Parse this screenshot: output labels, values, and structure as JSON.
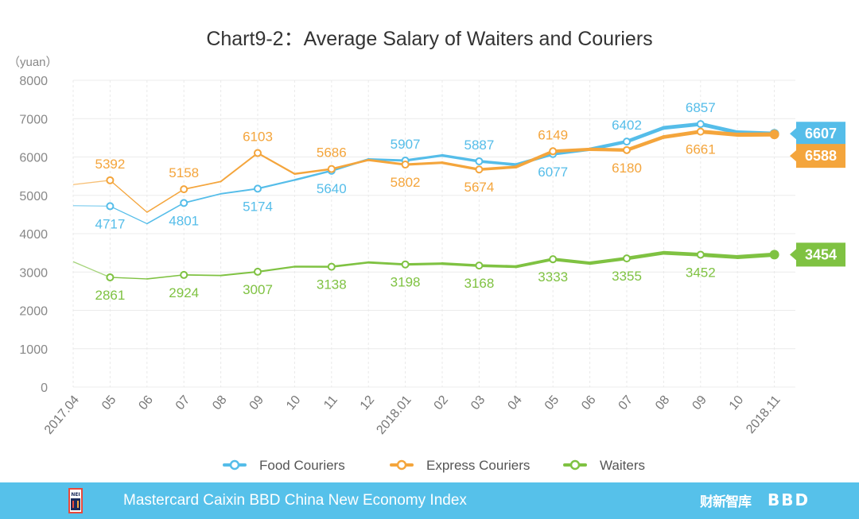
{
  "chart_data": {
    "type": "line",
    "title": "Chart9-2：Average Salary of Waiters and Couriers",
    "ylabel": "（yuan）",
    "xlabel": "",
    "ylim": [
      0,
      8000
    ],
    "yticks": [
      "0",
      "1000",
      "2000",
      "3000",
      "4000",
      "5000",
      "6000",
      "7000",
      "8000"
    ],
    "categories": [
      "2017.04",
      "05",
      "06",
      "07",
      "08",
      "09",
      "10",
      "11",
      "12",
      "2018.01",
      "02",
      "03",
      "04",
      "05",
      "06",
      "07",
      "08",
      "09",
      "10",
      "2018.11"
    ],
    "series": [
      {
        "name": "Food Couriers",
        "color": "#55bde9",
        "values": [
          4730,
          4717,
          4260,
          4801,
          5040,
          5174,
          5400,
          5640,
          5940,
          5907,
          6040,
          5887,
          5800,
          6077,
          6200,
          6402,
          6760,
          6857,
          6640,
          6607
        ],
        "labels": [
          null,
          "4717",
          null,
          "4801",
          null,
          "5174",
          null,
          "5640",
          null,
          "5907",
          null,
          "5887",
          null,
          "6077",
          null,
          "6402",
          null,
          "6857",
          null,
          null
        ],
        "label_pos": [
          null,
          "below",
          null,
          "below",
          null,
          "below",
          null,
          "below",
          null,
          "above",
          null,
          "above",
          null,
          "below",
          null,
          "above",
          null,
          "above",
          null,
          null
        ],
        "end_label": "6607"
      },
      {
        "name": "Express Couriers",
        "color": "#f4a53c",
        "values": [
          5280,
          5392,
          4560,
          5158,
          5360,
          6103,
          5560,
          5686,
          5920,
          5802,
          5850,
          5674,
          5740,
          6149,
          6200,
          6180,
          6520,
          6661,
          6580,
          6588
        ],
        "labels": [
          null,
          "5392",
          null,
          "5158",
          null,
          "6103",
          null,
          "5686",
          null,
          "5802",
          null,
          "5674",
          null,
          "6149",
          null,
          "6180",
          null,
          "6661",
          null,
          null
        ],
        "label_pos": [
          null,
          "above",
          null,
          "above",
          null,
          "above",
          null,
          "above",
          null,
          "below",
          null,
          "below",
          null,
          "above",
          null,
          "below",
          null,
          "below",
          null,
          null
        ],
        "end_label": "6588"
      },
      {
        "name": "Waiters",
        "color": "#7fc242",
        "values": [
          3270,
          2861,
          2820,
          2924,
          2910,
          3007,
          3140,
          3138,
          3250,
          3198,
          3220,
          3168,
          3140,
          3333,
          3230,
          3355,
          3500,
          3452,
          3390,
          3454
        ],
        "labels": [
          null,
          "2861",
          null,
          "2924",
          null,
          "3007",
          null,
          "3138",
          null,
          "3198",
          null,
          "3168",
          null,
          "3333",
          null,
          "3355",
          null,
          "3452",
          null,
          null
        ],
        "label_pos": [
          null,
          "below",
          null,
          "below",
          null,
          "below",
          null,
          "below",
          null,
          "below",
          null,
          "below",
          null,
          "below",
          null,
          "below",
          null,
          "below",
          null,
          null
        ],
        "end_label": "3454"
      }
    ],
    "grid": true,
    "legend": "bottom"
  },
  "footer": {
    "text": "Mastercard Caixin BBD China New Economy Index",
    "brand_caixin": "财新智库",
    "brand_bbd": "BBD",
    "logo_text": "NEI"
  }
}
